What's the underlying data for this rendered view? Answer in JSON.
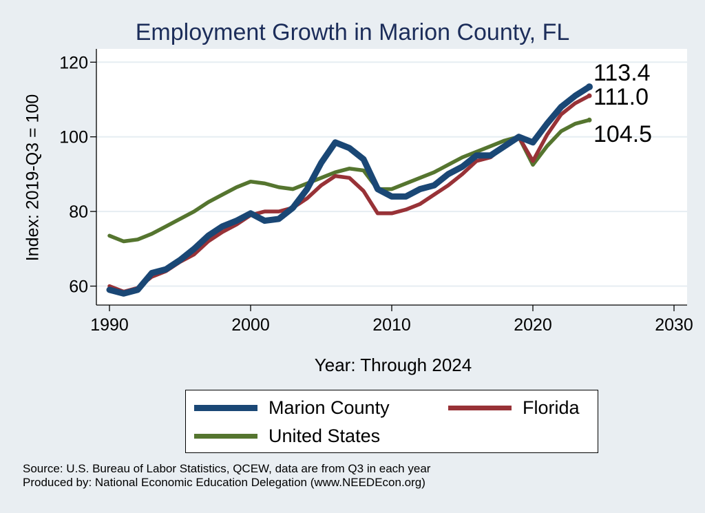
{
  "title": "Employment Growth in Marion County, FL",
  "colors": {
    "background": "#e9eef2",
    "plot_background": "#ffffff",
    "marion": "#1a4775",
    "florida": "#983237",
    "us": "#55752f",
    "gridline": "#e6edf2",
    "title": "#1c2d5a"
  },
  "legend": {
    "items": [
      {
        "key": "marion",
        "label": "Marion  County"
      },
      {
        "key": "florida",
        "label": "Florida"
      },
      {
        "key": "us",
        "label": "United States"
      }
    ]
  },
  "source_lines": [
    "Source: U.S. Bureau of Labor Statistics, QCEW, data are from Q3 in each year",
    "Produced by: National Economic Education Delegation (www.NEEDEcon.org)"
  ],
  "chart_data": {
    "type": "line",
    "title": "Employment Growth in Marion County, FL",
    "xlabel": "Year: Through 2024",
    "ylabel": "Index: 2019-Q3 = 100",
    "xlim": [
      1990,
      2030
    ],
    "ylim": [
      55,
      122
    ],
    "xticks": [
      1990,
      2000,
      2010,
      2020,
      2030
    ],
    "yticks": [
      60,
      80,
      100,
      120
    ],
    "grid": true,
    "x": [
      1990,
      1991,
      1992,
      1993,
      1994,
      1995,
      1996,
      1997,
      1998,
      1999,
      2000,
      2001,
      2002,
      2003,
      2004,
      2005,
      2006,
      2007,
      2008,
      2009,
      2010,
      2011,
      2012,
      2013,
      2014,
      2015,
      2016,
      2017,
      2018,
      2019,
      2020,
      2021,
      2022,
      2023,
      2024
    ],
    "series": [
      {
        "name": "Marion  County",
        "key": "marion",
        "end_label": "113.4",
        "values": [
          59.0,
          58.0,
          59.0,
          63.5,
          64.5,
          67.0,
          70.0,
          73.5,
          76.0,
          77.5,
          79.5,
          77.5,
          78.0,
          81.0,
          86.0,
          93.0,
          98.5,
          97.0,
          94.0,
          86.0,
          84.0,
          84.0,
          86.0,
          87.0,
          90.0,
          92.0,
          95.0,
          95.0,
          97.5,
          100.0,
          98.5,
          103.5,
          108.0,
          111.0,
          113.4
        ]
      },
      {
        "name": "Florida",
        "key": "florida",
        "end_label": "111.0",
        "values": [
          60.0,
          58.5,
          59.5,
          62.5,
          64.0,
          66.5,
          68.5,
          72.0,
          74.5,
          76.5,
          79.0,
          80.0,
          80.0,
          81.0,
          83.5,
          87.0,
          89.5,
          89.0,
          85.5,
          79.5,
          79.5,
          80.5,
          82.0,
          84.5,
          87.0,
          90.0,
          93.5,
          94.5,
          97.5,
          100.0,
          93.5,
          100.5,
          106.0,
          109.0,
          111.0
        ]
      },
      {
        "name": "United States",
        "key": "us",
        "end_label": "104.5",
        "values": [
          73.5,
          72.0,
          72.5,
          74.0,
          76.0,
          78.0,
          80.0,
          82.5,
          84.5,
          86.5,
          88.0,
          87.5,
          86.5,
          86.0,
          87.5,
          89.0,
          90.5,
          91.5,
          91.0,
          86.0,
          86.0,
          87.5,
          89.0,
          90.5,
          92.5,
          94.5,
          96.0,
          97.5,
          99.0,
          100.0,
          92.5,
          97.5,
          101.5,
          103.5,
          104.5
        ]
      }
    ]
  }
}
